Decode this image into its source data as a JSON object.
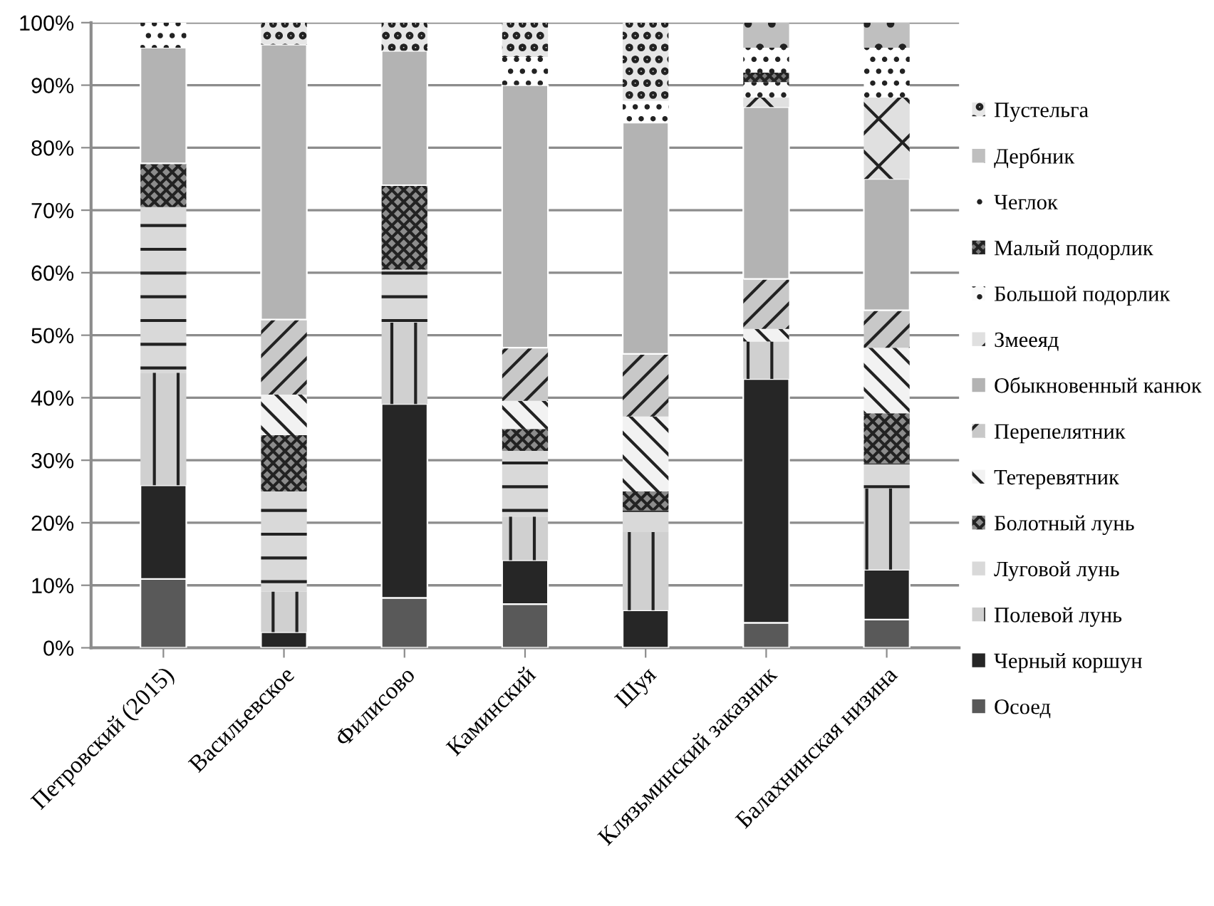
{
  "chart_data": {
    "type": "bar",
    "stacked": true,
    "categories": [
      "Петровский (2015)",
      "Васильевское",
      "Филисово",
      "Каминский",
      "Шуя",
      "Клязьминский заказник",
      "Балахнинская низина"
    ],
    "series": [
      {
        "name": "Осоед",
        "color": "#595959",
        "values": [
          11,
          0,
          8,
          7,
          0,
          4,
          4.5
        ]
      },
      {
        "name": "Черный коршун",
        "color": "#262626",
        "values": [
          15,
          2.5,
          31,
          7,
          6,
          39,
          8
        ]
      },
      {
        "name": "Полевой лунь",
        "color": "#d0d0d0",
        "values": [
          18,
          6.5,
          13,
          7,
          12.5,
          6,
          13
        ]
      },
      {
        "name": "Луговой лунь",
        "color": "#d9d9d9",
        "values": [
          26.5,
          16,
          8.5,
          10.5,
          3.5,
          0,
          4
        ]
      },
      {
        "name": "Болотный лунь",
        "color": "#8c8c8c",
        "values": [
          7,
          9,
          13.5,
          3.5,
          3,
          0,
          8
        ]
      },
      {
        "name": "Тетеревятник",
        "color": "#f2f2f2",
        "values": [
          0,
          6.5,
          0,
          4.5,
          12,
          2,
          10.5
        ]
      },
      {
        "name": "Перепелятник",
        "color": "#c8c8c8",
        "values": [
          0,
          12,
          0,
          8.5,
          10,
          8,
          6
        ]
      },
      {
        "name": "Обыкновенный канюк",
        "color": "#b3b3b3",
        "values": [
          18.5,
          44,
          21.5,
          42,
          37,
          27.5,
          21
        ]
      },
      {
        "name": "Змееяд",
        "color": "#e0e0e0",
        "values": [
          0,
          0,
          0,
          0,
          0,
          1.5,
          13
        ]
      },
      {
        "name": "Большой подорлик",
        "color": "#fafafa",
        "values": [
          0,
          0,
          0,
          0,
          0,
          2.5,
          0
        ]
      },
      {
        "name": "Малый подорлик",
        "color": "#7a7a7a",
        "values": [
          0,
          0,
          0,
          0,
          0,
          1.5,
          0
        ]
      },
      {
        "name": "Чеглок",
        "color": "#ffffff",
        "values": [
          4,
          0,
          0,
          4.5,
          3.5,
          4,
          8
        ]
      },
      {
        "name": "Дербник",
        "color": "#bfbfbf",
        "values": [
          0,
          0,
          0,
          0,
          0,
          4,
          4
        ]
      },
      {
        "name": "Пустельга",
        "color": "#e6e6e6",
        "values": [
          0,
          3.5,
          4.5,
          5.5,
          12.5,
          0,
          0
        ]
      }
    ],
    "ylim": [
      0,
      100
    ],
    "yticks": [
      {
        "value": 0,
        "label": "0%"
      },
      {
        "value": 10,
        "label": "10%"
      },
      {
        "value": 20,
        "label": "20%"
      },
      {
        "value": 30,
        "label": "30%"
      },
      {
        "value": 40,
        "label": "40%"
      },
      {
        "value": 50,
        "label": "50%"
      },
      {
        "value": 60,
        "label": "60%"
      },
      {
        "value": 70,
        "label": "70%"
      },
      {
        "value": 80,
        "label": "80%"
      },
      {
        "value": 90,
        "label": "90%"
      },
      {
        "value": 100,
        "label": "100%"
      }
    ],
    "grid": "y",
    "legend": "right"
  }
}
